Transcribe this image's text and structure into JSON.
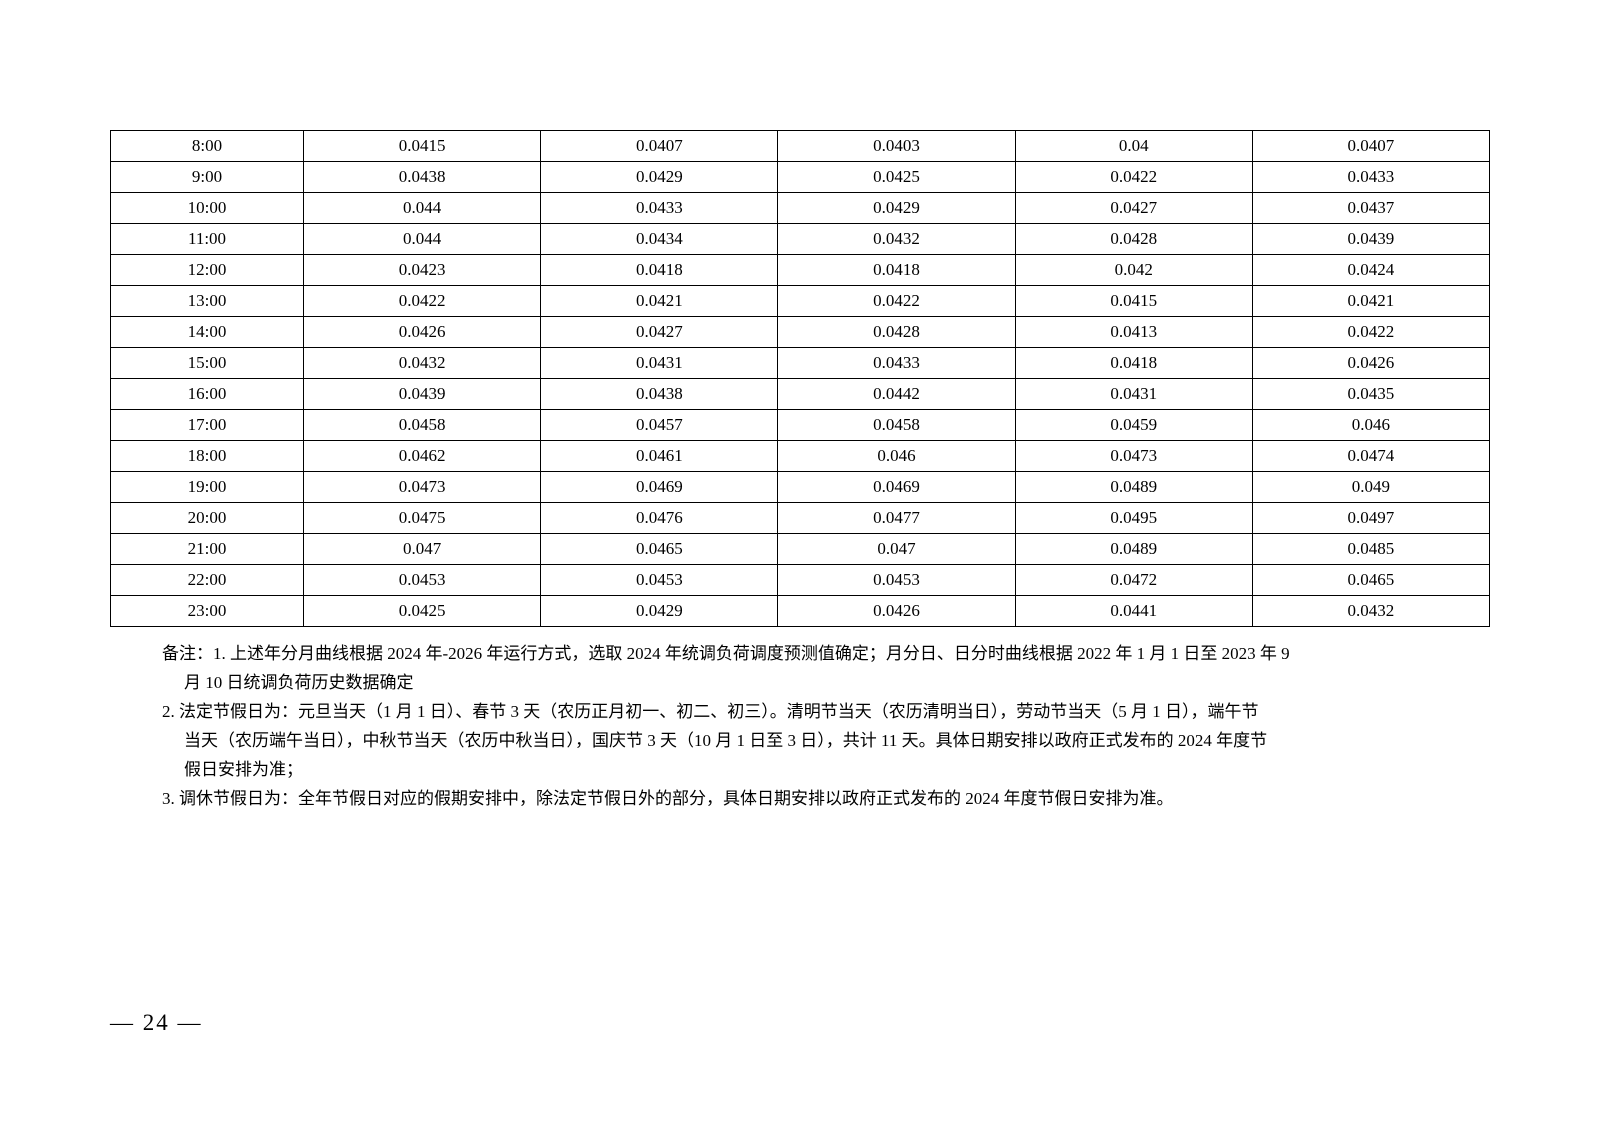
{
  "table": {
    "rows": [
      [
        "8:00",
        "0.0415",
        "0.0407",
        "0.0403",
        "0.04",
        "0.0407"
      ],
      [
        "9:00",
        "0.0438",
        "0.0429",
        "0.0425",
        "0.0422",
        "0.0433"
      ],
      [
        "10:00",
        "0.044",
        "0.0433",
        "0.0429",
        "0.0427",
        "0.0437"
      ],
      [
        "11:00",
        "0.044",
        "0.0434",
        "0.0432",
        "0.0428",
        "0.0439"
      ],
      [
        "12:00",
        "0.0423",
        "0.0418",
        "0.0418",
        "0.042",
        "0.0424"
      ],
      [
        "13:00",
        "0.0422",
        "0.0421",
        "0.0422",
        "0.0415",
        "0.0421"
      ],
      [
        "14:00",
        "0.0426",
        "0.0427",
        "0.0428",
        "0.0413",
        "0.0422"
      ],
      [
        "15:00",
        "0.0432",
        "0.0431",
        "0.0433",
        "0.0418",
        "0.0426"
      ],
      [
        "16:00",
        "0.0439",
        "0.0438",
        "0.0442",
        "0.0431",
        "0.0435"
      ],
      [
        "17:00",
        "0.0458",
        "0.0457",
        "0.0458",
        "0.0459",
        "0.046"
      ],
      [
        "18:00",
        "0.0462",
        "0.0461",
        "0.046",
        "0.0473",
        "0.0474"
      ],
      [
        "19:00",
        "0.0473",
        "0.0469",
        "0.0469",
        "0.0489",
        "0.049"
      ],
      [
        "20:00",
        "0.0475",
        "0.0476",
        "0.0477",
        "0.0495",
        "0.0497"
      ],
      [
        "21:00",
        "0.047",
        "0.0465",
        "0.047",
        "0.0489",
        "0.0485"
      ],
      [
        "22:00",
        "0.0453",
        "0.0453",
        "0.0453",
        "0.0472",
        "0.0465"
      ],
      [
        "23:00",
        "0.0425",
        "0.0429",
        "0.0426",
        "0.0441",
        "0.0432"
      ]
    ]
  },
  "notes": {
    "line1": "备注：1. 上述年分月曲线根据 2024 年-2026 年运行方式，选取 2024 年统调负荷调度预测值确定；月分日、日分时曲线根据 2022 年 1 月 1 日至 2023 年 9",
    "line2": "月 10 日统调负荷历史数据确定",
    "line3": "2. 法定节假日为：元旦当天（1 月 1 日）、春节 3 天（农历正月初一、初二、初三）。清明节当天（农历清明当日），劳动节当天（5 月 1 日），端午节",
    "line4": "当天（农历端午当日），中秋节当天（农历中秋当日），国庆节 3 天（10 月 1 日至 3 日），共计 11 天。具体日期安排以政府正式发布的 2024 年度节",
    "line5": "假日安排为准；",
    "line6": "3. 调休节假日为：全年节假日对应的假期安排中，除法定节假日外的部分，具体日期安排以政府正式发布的 2024 年度节假日安排为准。"
  },
  "page": "— 24 —"
}
